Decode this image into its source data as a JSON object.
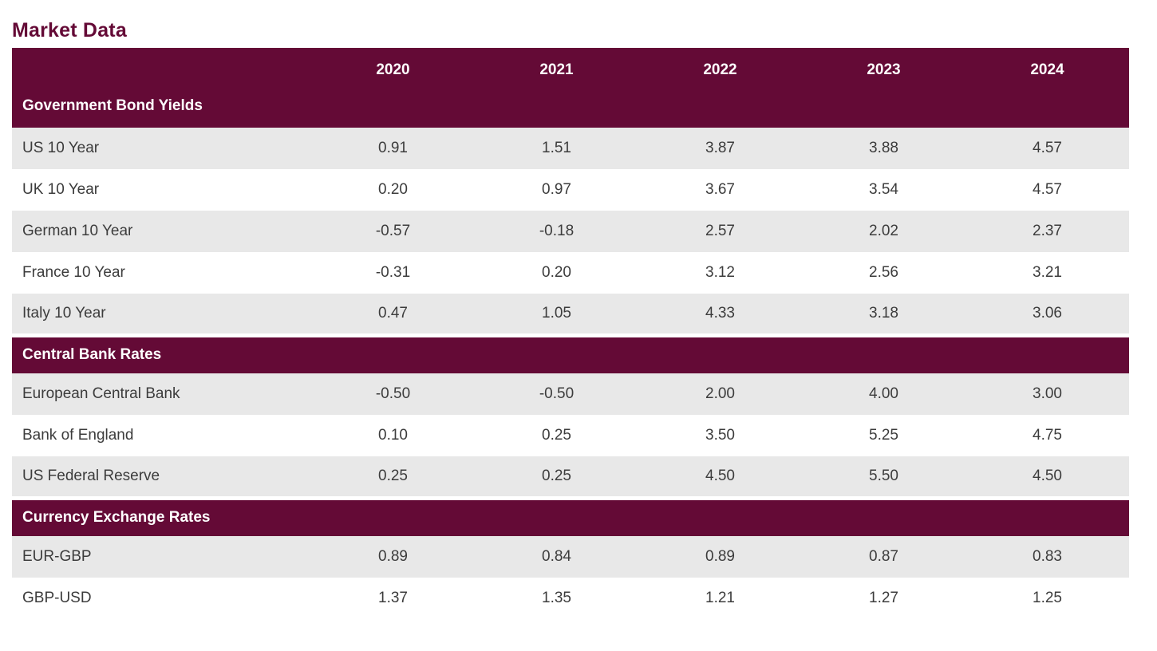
{
  "title": "Market Data",
  "colors": {
    "maroon": "#640A36",
    "row_alt": "#E8E8E8",
    "row_text": "#3C3C3C",
    "header_text": "#FFFFFF"
  },
  "table": {
    "years": [
      "2020",
      "2021",
      "2022",
      "2023",
      "2024"
    ],
    "sections": [
      {
        "label": "Government Bond Yields",
        "rows": [
          {
            "label": "US 10 Year",
            "values": [
              "0.91",
              "1.51",
              "3.87",
              "3.88",
              "4.57"
            ]
          },
          {
            "label": "UK 10 Year",
            "values": [
              "0.20",
              "0.97",
              "3.67",
              "3.54",
              "4.57"
            ]
          },
          {
            "label": "German 10 Year",
            "values": [
              "-0.57",
              "-0.18",
              "2.57",
              "2.02",
              "2.37"
            ]
          },
          {
            "label": "France 10 Year",
            "values": [
              "-0.31",
              "0.20",
              "3.12",
              "2.56",
              "3.21"
            ]
          },
          {
            "label": "Italy 10 Year",
            "values": [
              "0.47",
              "1.05",
              "4.33",
              "3.18",
              "3.06"
            ]
          }
        ]
      },
      {
        "label": "Central Bank Rates",
        "rows": [
          {
            "label": "European Central Bank",
            "values": [
              "-0.50",
              "-0.50",
              "2.00",
              "4.00",
              "3.00"
            ]
          },
          {
            "label": "Bank of England",
            "values": [
              "0.10",
              "0.25",
              "3.50",
              "5.25",
              "4.75"
            ]
          },
          {
            "label": "US Federal Reserve",
            "values": [
              "0.25",
              "0.25",
              "4.50",
              "5.50",
              "4.50"
            ]
          }
        ]
      },
      {
        "label": "Currency Exchange Rates",
        "rows": [
          {
            "label": "EUR-GBP",
            "values": [
              "0.89",
              "0.84",
              "0.89",
              "0.87",
              "0.83"
            ]
          },
          {
            "label": "GBP-USD",
            "values": [
              "1.37",
              "1.35",
              "1.21",
              "1.27",
              "1.25"
            ]
          }
        ]
      }
    ]
  },
  "chart_data": {
    "type": "table",
    "title": "Market Data",
    "columns": [
      "2020",
      "2021",
      "2022",
      "2023",
      "2024"
    ],
    "sections": [
      {
        "name": "Government Bond Yields",
        "rows": [
          {
            "label": "US 10 Year",
            "values": [
              0.91,
              1.51,
              3.87,
              3.88,
              4.57
            ]
          },
          {
            "label": "UK 10 Year",
            "values": [
              0.2,
              0.97,
              3.67,
              3.54,
              4.57
            ]
          },
          {
            "label": "German 10 Year",
            "values": [
              -0.57,
              -0.18,
              2.57,
              2.02,
              2.37
            ]
          },
          {
            "label": "France 10 Year",
            "values": [
              -0.31,
              0.2,
              3.12,
              2.56,
              3.21
            ]
          },
          {
            "label": "Italy 10 Year",
            "values": [
              0.47,
              1.05,
              4.33,
              3.18,
              3.06
            ]
          }
        ]
      },
      {
        "name": "Central Bank Rates",
        "rows": [
          {
            "label": "European Central Bank",
            "values": [
              -0.5,
              -0.5,
              2.0,
              4.0,
              3.0
            ]
          },
          {
            "label": "Bank of England",
            "values": [
              0.1,
              0.25,
              3.5,
              5.25,
              4.75
            ]
          },
          {
            "label": "US Federal Reserve",
            "values": [
              0.25,
              0.25,
              4.5,
              5.5,
              4.5
            ]
          }
        ]
      },
      {
        "name": "Currency Exchange Rates",
        "rows": [
          {
            "label": "EUR-GBP",
            "values": [
              0.89,
              0.84,
              0.89,
              0.87,
              0.83
            ]
          },
          {
            "label": "GBP-USD",
            "values": [
              1.37,
              1.35,
              1.21,
              1.27,
              1.25
            ]
          }
        ]
      }
    ]
  }
}
